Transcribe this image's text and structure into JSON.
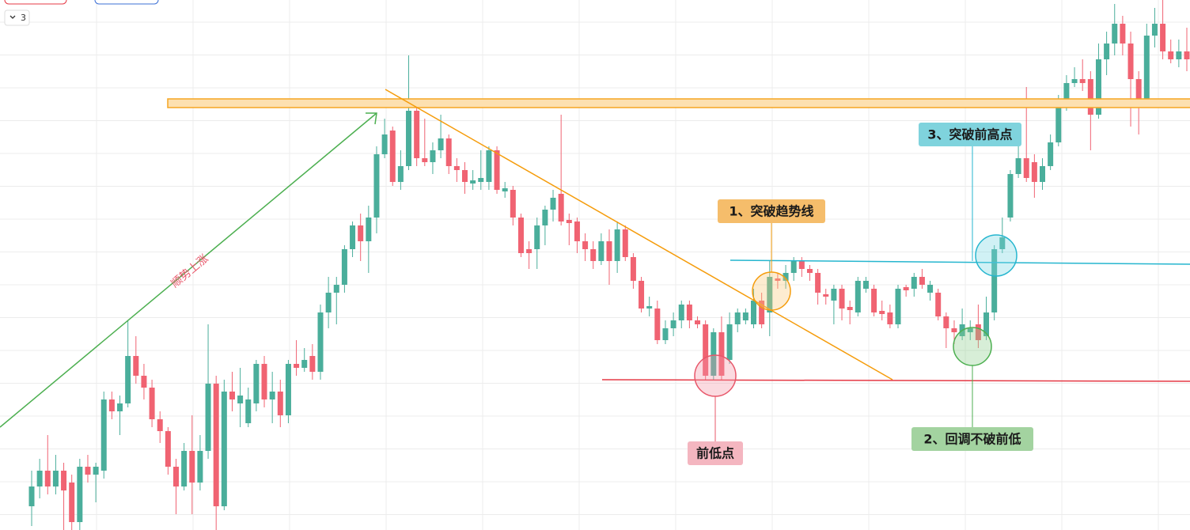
{
  "toolbar": {
    "interval": "3"
  },
  "chart_data": {
    "type": "candlestick",
    "up_color": "#4aae9b",
    "down_color": "#f06372",
    "grid": true,
    "ylim": [
      0,
      670
    ],
    "open": [
      30,
      55,
      75,
      55,
      75,
      60,
      10,
      80,
      70,
      75,
      165,
      150,
      160,
      220,
      195,
      180,
      140,
      125,
      80,
      55,
      100,
      60,
      100,
      185,
      30,
      175,
      160,
      135,
      160,
      210,
      165,
      175,
      145,
      210,
      205,
      220,
      200,
      275,
      300,
      310,
      355,
      385,
      365,
      395,
      475,
      505,
      440,
      460,
      530,
      470,
      465,
      480,
      495,
      460,
      455,
      438,
      440,
      440,
      480,
      428,
      430,
      395,
      355,
      355,
      385,
      405,
      425,
      392,
      390,
      365,
      355,
      340,
      365,
      340,
      380,
      345,
      315,
      280,
      280,
      240,
      255,
      265,
      285,
      265,
      260,
      195,
      250,
      215,
      260,
      265,
      260,
      290,
      275,
      318,
      315,
      325,
      340,
      330,
      325,
      298,
      290,
      305,
      282,
      275,
      305,
      305,
      277,
      275,
      260,
      307,
      305,
      320,
      300,
      300,
      270,
      255,
      245,
      250,
      260,
      245,
      275,
      355,
      395,
      450,
      470,
      465,
      440,
      460,
      490,
      540,
      565,
      570,
      570,
      525,
      595,
      615,
      640,
      615,
      570,
      545,
      625,
      640,
      605,
      595,
      605
    ],
    "high": [
      75,
      90,
      120,
      95,
      85,
      70,
      90,
      95,
      85,
      175,
      175,
      170,
      265,
      245,
      210,
      190,
      150,
      130,
      90,
      110,
      145,
      120,
      260,
      195,
      190,
      200,
      205,
      180,
      215,
      220,
      200,
      190,
      215,
      240,
      230,
      235,
      285,
      320,
      320,
      360,
      390,
      400,
      410,
      485,
      520,
      510,
      480,
      600,
      540,
      520,
      490,
      525,
      500,
      470,
      465,
      455,
      480,
      485,
      485,
      440,
      435,
      400,
      365,
      395,
      410,
      430,
      525,
      400,
      395,
      375,
      365,
      375,
      380,
      390,
      385,
      350,
      320,
      295,
      290,
      265,
      275,
      290,
      290,
      270,
      265,
      255,
      270,
      275,
      280,
      280,
      305,
      300,
      340,
      325,
      335,
      345,
      345,
      335,
      330,
      305,
      310,
      310,
      290,
      320,
      320,
      310,
      290,
      285,
      310,
      310,
      325,
      330,
      315,
      305,
      275,
      265,
      280,
      265,
      285,
      295,
      360,
      395,
      455,
      500,
      560,
      475,
      470,
      500,
      550,
      575,
      585,
      595,
      580,
      615,
      630,
      665,
      650,
      630,
      580,
      640,
      660,
      670,
      620,
      620,
      635
    ],
    "low": [
      5,
      40,
      45,
      45,
      0,
      0,
      0,
      60,
      35,
      65,
      140,
      120,
      155,
      185,
      165,
      130,
      110,
      70,
      20,
      50,
      20,
      50,
      90,
      0,
      25,
      150,
      130,
      130,
      150,
      155,
      135,
      130,
      135,
      195,
      200,
      190,
      190,
      255,
      260,
      300,
      345,
      340,
      325,
      375,
      470,
      435,
      430,
      455,
      460,
      460,
      450,
      470,
      450,
      440,
      425,
      430,
      430,
      430,
      425,
      420,
      385,
      345,
      330,
      330,
      360,
      390,
      385,
      360,
      350,
      340,
      330,
      335,
      310,
      325,
      340,
      305,
      275,
      270,
      235,
      235,
      245,
      255,
      255,
      255,
      190,
      190,
      190,
      210,
      250,
      260,
      255,
      255,
      245,
      305,
      305,
      315,
      320,
      315,
      285,
      285,
      260,
      265,
      260,
      270,
      300,
      270,
      265,
      255,
      255,
      295,
      295,
      305,
      290,
      265,
      230,
      235,
      240,
      240,
      230,
      240,
      265,
      350,
      390,
      445,
      440,
      420,
      430,
      455,
      485,
      530,
      560,
      555,
      480,
      520,
      575,
      600,
      600,
      510,
      500,
      540,
      610,
      595,
      590,
      585,
      580
    ],
    "close": [
      55,
      75,
      55,
      75,
      50,
      10,
      80,
      70,
      80,
      165,
      150,
      160,
      220,
      195,
      180,
      140,
      125,
      80,
      55,
      100,
      60,
      100,
      185,
      30,
      175,
      165,
      170,
      165,
      210,
      165,
      175,
      145,
      210,
      205,
      215,
      200,
      275,
      300,
      310,
      355,
      385,
      365,
      395,
      475,
      500,
      440,
      460,
      530,
      470,
      465,
      480,
      495,
      460,
      455,
      440,
      442,
      445,
      480,
      430,
      432,
      395,
      350,
      350,
      385,
      405,
      420,
      390,
      388,
      365,
      355,
      340,
      365,
      340,
      380,
      345,
      315,
      280,
      283,
      240,
      255,
      265,
      285,
      265,
      260,
      195,
      250,
      195,
      260,
      275,
      275,
      290,
      260,
      320,
      315,
      325,
      340,
      330,
      325,
      300,
      295,
      305,
      280,
      278,
      315,
      315,
      275,
      273,
      260,
      305,
      303,
      320,
      310,
      310,
      270,
      255,
      250,
      260,
      255,
      240,
      275,
      355,
      370,
      450,
      470,
      445,
      440,
      460,
      490,
      540,
      565,
      570,
      565,
      525,
      595,
      615,
      640,
      615,
      570,
      540,
      625,
      640,
      605,
      595,
      605,
      595
    ]
  },
  "annotations": {
    "uptrend": "顺势上涨",
    "break_trendline": "1、突破趋势线",
    "prior_low": "前低点",
    "pullback": "2、回调不破前低",
    "break_high": "3、突破前高点"
  }
}
